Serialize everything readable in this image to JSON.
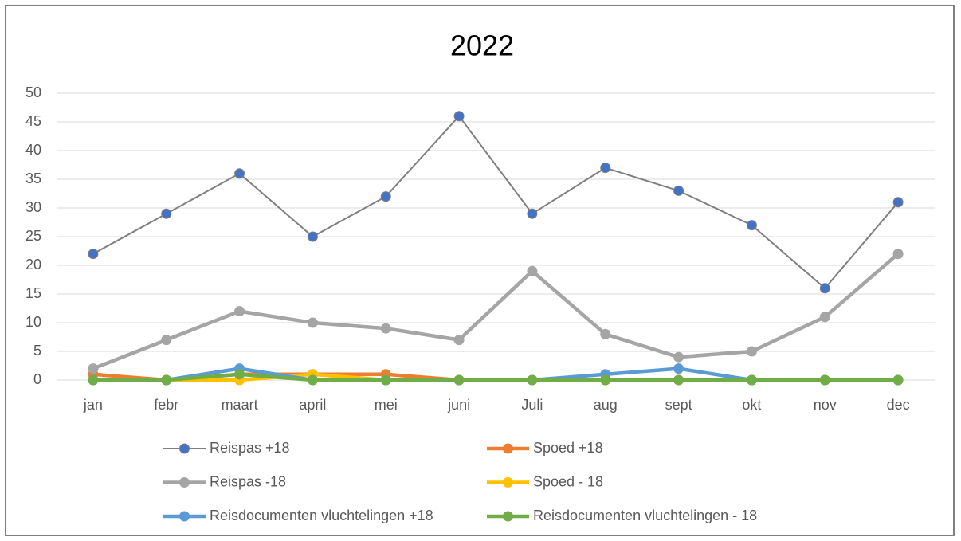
{
  "chart_data": {
    "type": "line",
    "title": "2022",
    "categories": [
      "jan",
      "febr",
      "maart",
      "april",
      "mei",
      "juni",
      "Juli",
      "aug",
      "sept",
      "okt",
      "nov",
      "dec"
    ],
    "series": [
      {
        "name": "Reispas +18",
        "color": "#7f7f7f",
        "marker_color": "#4472c4",
        "values": [
          22,
          29,
          36,
          25,
          32,
          46,
          29,
          37,
          33,
          27,
          16,
          31
        ]
      },
      {
        "name": "Spoed +18",
        "color": "#ed7d31",
        "values": [
          1,
          0,
          1,
          1,
          1,
          0,
          0,
          0,
          0,
          0,
          0,
          0
        ]
      },
      {
        "name": "Reispas -18",
        "color": "#a5a5a5",
        "values": [
          2,
          7,
          12,
          10,
          9,
          7,
          19,
          8,
          4,
          5,
          11,
          22
        ]
      },
      {
        "name": "Spoed - 18",
        "color": "#ffc000",
        "values": [
          0,
          0,
          0,
          1,
          0,
          0,
          0,
          0,
          0,
          0,
          0,
          0
        ]
      },
      {
        "name": "Reisdocumenten vluchtelingen +18",
        "color": "#5b9bd5",
        "values": [
          0,
          0,
          2,
          0,
          0,
          0,
          0,
          1,
          2,
          0,
          0,
          0
        ]
      },
      {
        "name": "Reisdocumenten vluchtelingen - 18",
        "color": "#70ad47",
        "values": [
          0,
          0,
          1,
          0,
          0,
          0,
          0,
          0,
          0,
          0,
          0,
          0
        ]
      }
    ],
    "ylim": [
      0,
      50
    ],
    "yticks": [
      0,
      5,
      10,
      15,
      20,
      25,
      30,
      35,
      40,
      45,
      50
    ],
    "grid": true,
    "legend": "bottom"
  }
}
